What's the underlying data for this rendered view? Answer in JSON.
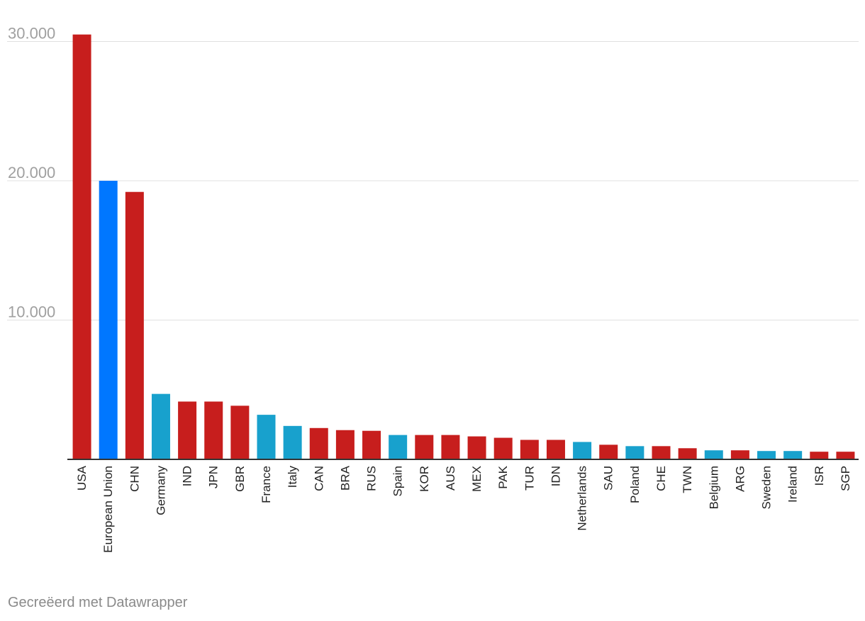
{
  "chart_data": {
    "type": "bar",
    "title": "",
    "xlabel": "",
    "ylabel": "",
    "ylim": [
      0,
      30000
    ],
    "yticks": [
      {
        "value": 10000,
        "label": "10.000"
      },
      {
        "value": 20000,
        "label": "20.000"
      },
      {
        "value": 30000,
        "label": "30.000"
      }
    ],
    "categories": [
      "USA",
      "European Union",
      "CHN",
      "Germany",
      "IND",
      "JPN",
      "GBR",
      "France",
      "Italy",
      "CAN",
      "BRA",
      "RUS",
      "Spain",
      "KOR",
      "AUS",
      "MEX",
      "PAK",
      "TUR",
      "IDN",
      "Netherlands",
      "SAU",
      "Poland",
      "CHE",
      "TWN",
      "Belgium",
      "ARG",
      "Sweden",
      "Ireland",
      "ISR",
      "SGP"
    ],
    "values": [
      30500,
      20000,
      19200,
      4700,
      4150,
      4150,
      3850,
      3200,
      2400,
      2250,
      2100,
      2050,
      1750,
      1750,
      1750,
      1650,
      1550,
      1400,
      1400,
      1250,
      1050,
      950,
      950,
      800,
      650,
      650,
      600,
      600,
      550,
      550
    ],
    "bar_groups": [
      "country",
      "eu",
      "country",
      "eu-member",
      "country",
      "country",
      "country",
      "eu-member",
      "eu-member",
      "country",
      "country",
      "country",
      "eu-member",
      "country",
      "country",
      "country",
      "country",
      "country",
      "country",
      "eu-member",
      "country",
      "eu-member",
      "country",
      "country",
      "eu-member",
      "country",
      "eu-member",
      "eu-member",
      "country",
      "country"
    ],
    "colors": {
      "country": "#c71e1d",
      "eu": "#0077ff",
      "eu-member": "#18a1cd",
      "gridline": "#e0e0e0",
      "axis": "#333333",
      "ytick_text": "#a0a0a0",
      "xtick_text": "#222222"
    }
  },
  "footer": {
    "credit": "Gecreëerd met Datawrapper"
  }
}
